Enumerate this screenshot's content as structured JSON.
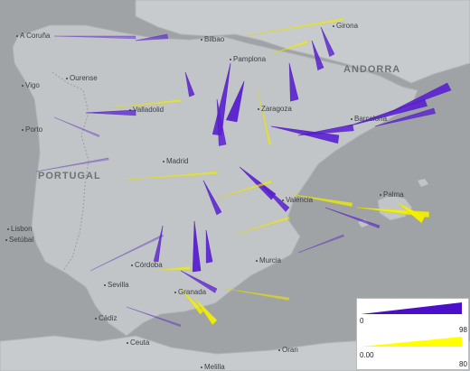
{
  "map": {
    "countries": [
      "PORTUGAL",
      "ANDORRA"
    ],
    "cities": [
      "A Coruña",
      "Bilbao",
      "Girona",
      "Pamplona",
      "Ourense",
      "Vigo",
      "Valladolid",
      "Zaragoza",
      "Barcelona",
      "Porto",
      "Madrid",
      "Palma",
      "Valencia",
      "Lisbon",
      "Setúbal",
      "Córdoba",
      "Murcia",
      "Sevilla",
      "Granada",
      "Cádiz",
      "Ceuta",
      "Oran",
      "Melilla"
    ],
    "colors": {
      "land": "#c2c5c7",
      "sea": "#9fa3a6",
      "flow_high": "#5a1fd1",
      "flow_low": "#f4f200"
    }
  },
  "legend": {
    "purple": {
      "min": "0",
      "max": "98",
      "color": "#4b0fcc"
    },
    "yellow": {
      "min": "0.00",
      "max": "80",
      "color": "#ffff00"
    }
  }
}
